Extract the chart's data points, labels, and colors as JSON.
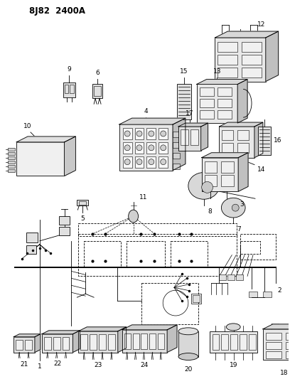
{
  "title": "8J82  2400A",
  "bg_color": "#ffffff",
  "fg_color": "#000000",
  "figsize": [
    4.08,
    5.33
  ],
  "dpi": 100,
  "lw": 0.6,
  "lw2": 1.4
}
